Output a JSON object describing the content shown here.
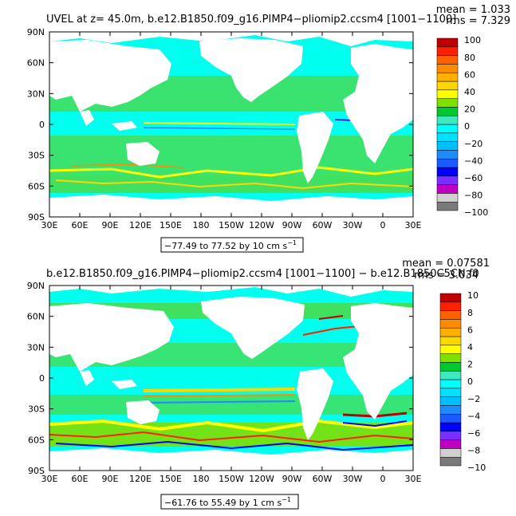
{
  "panels": [
    {
      "title": "UVEL at z=  45.0m, b.e12.B1850.f09_g16.PIMP4−pliomip2.ccsm4  [1001−1100]",
      "mean_label": "mean = 1.033",
      "rms_label": "rms = 7.329",
      "range_label": "−77.49 to 77.52 by 10 cm s",
      "range_unit_sup": "−1",
      "colorbar_labels": [
        "100",
        "80",
        "60",
        "40",
        "20",
        "0",
        "−20",
        "−40",
        "−60",
        "−80",
        "−100"
      ]
    },
    {
      "title": "b.e12.B1850.f09_g16.PIMP4−pliomip2.ccsm4  [1001−1100]  −  b.e12.B1850C5CN.f0",
      "mean_label": "mean = 0.07581",
      "rms_label": "rms = 3.034",
      "range_label": "−61.76 to 55.49 by 1 cm s",
      "range_unit_sup": "−1",
      "colorbar_labels": [
        "10",
        "8",
        "6",
        "4",
        "2",
        "0",
        "−2",
        "−4",
        "−6",
        "−8",
        "−10"
      ]
    }
  ],
  "lat_ticks": [
    "90N",
    "60N",
    "30N",
    "0",
    "30S",
    "60S",
    "90S"
  ],
  "lon_ticks": [
    "30E",
    "60E",
    "90E",
    "120E",
    "150E",
    "180",
    "150W",
    "120W",
    "90W",
    "60W",
    "30W",
    "0",
    "30E"
  ],
  "colorbar_colors": [
    "#7a7a7a",
    "#d0d0d0",
    "#c000c0",
    "#7a2fff",
    "#0000ff",
    "#1a5aff",
    "#1e8cff",
    "#00bfff",
    "#00e0ff",
    "#00ffff",
    "#40e8c0",
    "#00c830",
    "#7fe000",
    "#ffff00",
    "#ffd700",
    "#ffb000",
    "#ff8c00",
    "#ff6000",
    "#ff2000",
    "#c00000"
  ],
  "colors": {
    "ocean": "#00ffee",
    "green": "#40e060",
    "land": "#ffffff"
  },
  "chart_data": [
    {
      "type": "heatmap",
      "title": "UVEL at z=  45.0m, b.e12.B1850.f09_g16.PIMP4−pliomip2.ccsm4  [1001−1100]",
      "mean": 1.033,
      "rms": 7.329,
      "contour_min": -77.49,
      "contour_max": 77.52,
      "contour_interval": 10,
      "units": "cm s−1",
      "colorbar_levels": [
        -100,
        -80,
        -60,
        -40,
        -20,
        0,
        20,
        40,
        60,
        80,
        100
      ],
      "x_range": [
        "30E",
        "30E"
      ],
      "y_range": [
        "90S",
        "90N"
      ]
    },
    {
      "type": "heatmap",
      "title": "b.e12.B1850.f09_g16.PIMP4−pliomip2.ccsm4  [1001−1100]  −  b.e12.B1850C5CN.f0",
      "mean": 0.07581,
      "rms": 3.034,
      "contour_min": -61.76,
      "contour_max": 55.49,
      "contour_interval": 1,
      "units": "cm s−1",
      "colorbar_levels": [
        -10,
        -8,
        -6,
        -4,
        -2,
        0,
        2,
        4,
        6,
        8,
        10
      ],
      "x_range": [
        "30E",
        "30E"
      ],
      "y_range": [
        "90S",
        "90N"
      ]
    }
  ]
}
